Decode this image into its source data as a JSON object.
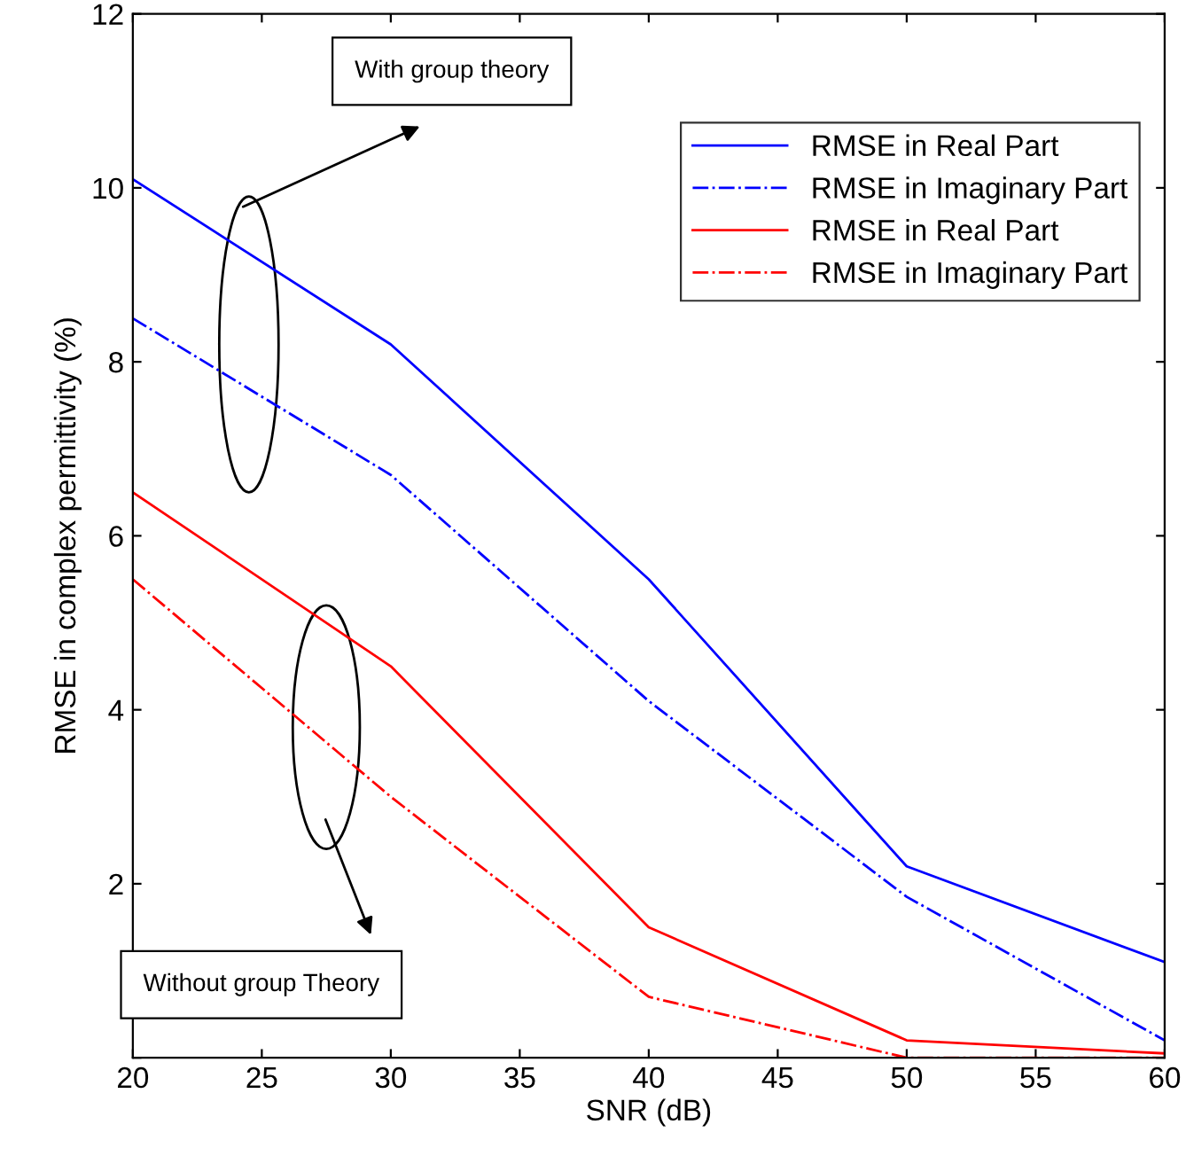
{
  "chart_data": {
    "type": "line",
    "xlabel": "SNR (dB)",
    "ylabel": "RMSE in complex permittivity (%)",
    "x": [
      20,
      30,
      40,
      50,
      60
    ],
    "series": [
      {
        "name": "RMSE in Real Part",
        "color": "#0000ff",
        "line_style": "solid",
        "values": [
          10.1,
          8.2,
          5.5,
          2.2,
          1.1
        ]
      },
      {
        "name": "RMSE in Imaginary Part",
        "color": "#0000ff",
        "line_style": "dashdot",
        "values": [
          8.5,
          6.7,
          4.1,
          1.85,
          0.2
        ]
      },
      {
        "name": "RMSE in Real Part",
        "color": "#ff0000",
        "line_style": "solid",
        "values": [
          6.5,
          4.5,
          1.5,
          0.2,
          0.05
        ]
      },
      {
        "name": "RMSE in Imaginary Part",
        "color": "#ff0000",
        "line_style": "dashdot",
        "values": [
          5.5,
          3.0,
          0.7,
          0.0,
          0.0
        ]
      }
    ],
    "xlim": [
      20,
      60
    ],
    "xticks": [
      20,
      25,
      30,
      35,
      40,
      45,
      50,
      55,
      60
    ],
    "ylim": [
      0,
      12
    ],
    "yticks": [
      {
        "value": 0,
        "label": null
      },
      2,
      4,
      6,
      8,
      10,
      12
    ],
    "grid": false,
    "legend": "top right",
    "marker": "none",
    "annotations": [
      "With group theory",
      "Without group Theory"
    ]
  }
}
